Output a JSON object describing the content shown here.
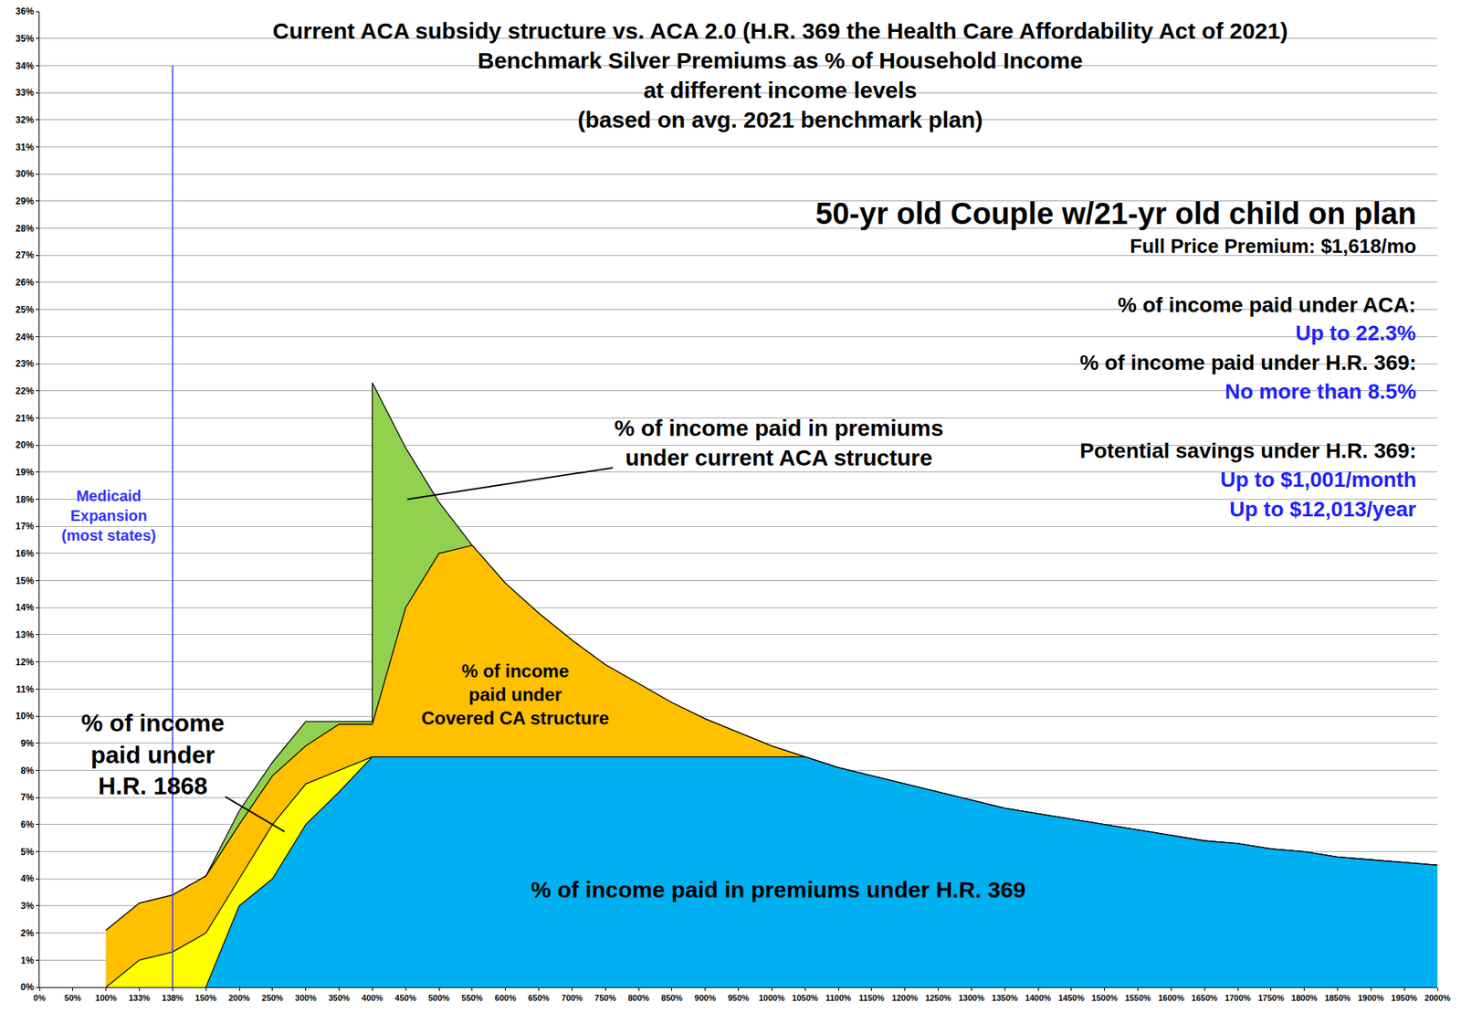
{
  "chart_data": {
    "type": "area",
    "title": "Current ACA subsidy structure vs. ACA 2.0 (H.R. 369 the Health Care Affordability Act of 2021)\nBenchmark Silver Premiums as % of Household Income\nat different income levels\n(based on avg. 2021 benchmark plan)",
    "categories": [
      "0%",
      "50%",
      "100%",
      "133%",
      "138%",
      "150%",
      "200%",
      "250%",
      "300%",
      "350%",
      "400%",
      "450%",
      "500%",
      "550%",
      "600%",
      "650%",
      "700%",
      "750%",
      "800%",
      "850%",
      "900%",
      "950%",
      "1000%",
      "1050%",
      "1100%",
      "1150%",
      "1200%",
      "1250%",
      "1300%",
      "1350%",
      "1400%",
      "1450%",
      "1500%",
      "1550%",
      "1600%",
      "1650%",
      "1700%",
      "1750%",
      "1800%",
      "1850%",
      "1900%",
      "1950%",
      "2000%"
    ],
    "series": [
      {
        "name": "% of income paid in premiums\nunder current ACA structure",
        "color": "#92d050",
        "values": [
          null,
          null,
          2.1,
          3.1,
          3.4,
          4.1,
          6.5,
          8.3,
          9.8,
          9.8,
          [
            9.8,
            22.3
          ],
          19.9,
          17.9,
          16.3,
          14.9,
          13.8,
          12.8,
          11.9,
          11.2,
          10.5,
          9.9,
          9.4,
          8.9,
          8.5,
          8.1,
          7.8,
          7.5,
          7.2,
          6.9,
          6.6,
          6.4,
          6.2,
          6.0,
          5.8,
          5.6,
          5.4,
          5.3,
          5.1,
          5.0,
          4.8,
          4.7,
          4.6,
          4.5
        ]
      },
      {
        "name": "% of income\npaid under\nCovered CA structure",
        "color": "#ffc000",
        "values": [
          null,
          null,
          2.1,
          3.1,
          3.4,
          4.1,
          6.0,
          7.8,
          8.9,
          9.7,
          9.7,
          14.0,
          16.0,
          16.3,
          14.9,
          13.8,
          12.8,
          11.9,
          11.2,
          10.5,
          9.9,
          9.4,
          8.9,
          8.5,
          8.1,
          7.8,
          7.5,
          7.2,
          6.9,
          6.6,
          6.4,
          6.2,
          6.0,
          5.8,
          5.6,
          5.4,
          5.3,
          5.1,
          5.0,
          4.8,
          4.7,
          4.6,
          4.5
        ]
      },
      {
        "name": "% of income\npaid under\nH.R. 1868",
        "color": "#ffff00",
        "values": [
          null,
          null,
          0,
          1.0,
          1.3,
          2.0,
          4.0,
          6.0,
          7.5,
          8.0,
          8.5,
          null,
          null,
          null,
          null,
          null,
          null,
          null,
          null,
          null,
          null,
          null,
          null,
          null,
          null,
          null,
          null,
          null,
          null,
          null,
          null,
          null,
          null,
          null,
          null,
          null,
          null,
          null,
          null,
          null,
          null,
          null,
          null
        ]
      },
      {
        "name": "% of income paid in premiums under H.R. 369",
        "color": "#00b0f0",
        "values": [
          null,
          null,
          null,
          null,
          null,
          0,
          3.0,
          4.0,
          6.0,
          7.2,
          8.5,
          8.5,
          8.5,
          8.5,
          8.5,
          8.5,
          8.5,
          8.5,
          8.5,
          8.5,
          8.5,
          8.5,
          8.5,
          8.5,
          8.1,
          7.8,
          7.5,
          7.2,
          6.9,
          6.6,
          6.4,
          6.2,
          6.0,
          5.8,
          5.6,
          5.4,
          5.3,
          5.1,
          5.0,
          4.8,
          4.7,
          4.6,
          4.5
        ]
      }
    ],
    "ylim": [
      0,
      36
    ],
    "yticks": [
      {
        "value": 0,
        "label": "0%"
      },
      {
        "value": 1,
        "label": "1%"
      },
      {
        "value": 2,
        "label": "2%"
      },
      {
        "value": 3,
        "label": "3%"
      },
      {
        "value": 4,
        "label": "4%"
      },
      {
        "value": 5,
        "label": "5%"
      },
      {
        "value": 6,
        "label": "6%"
      },
      {
        "value": 7,
        "label": "7%"
      },
      {
        "value": 8,
        "label": "8%"
      },
      {
        "value": 9,
        "label": "9%"
      },
      {
        "value": 10,
        "label": "10%"
      },
      {
        "value": 11,
        "label": "11%"
      },
      {
        "value": 12,
        "label": "12%"
      },
      {
        "value": 13,
        "label": "13%"
      },
      {
        "value": 14,
        "label": "14%"
      },
      {
        "value": 15,
        "label": "15%"
      },
      {
        "value": 16,
        "label": "16%"
      },
      {
        "value": 17,
        "label": "17%"
      },
      {
        "value": 18,
        "label": "18%"
      },
      {
        "value": 19,
        "label": "19%"
      },
      {
        "value": 20,
        "label": "20%"
      },
      {
        "value": 21,
        "label": "21%"
      },
      {
        "value": 22,
        "label": "22%"
      },
      {
        "value": 23,
        "label": "23%"
      },
      {
        "value": 24,
        "label": "24%"
      },
      {
        "value": 25,
        "label": "25%"
      },
      {
        "value": 26,
        "label": "26%"
      },
      {
        "value": 27,
        "label": "27%"
      },
      {
        "value": 28,
        "label": "28%"
      },
      {
        "value": 29,
        "label": "29%"
      },
      {
        "value": 30,
        "label": "30%"
      },
      {
        "value": 31,
        "label": "31%"
      },
      {
        "value": 32,
        "label": "32%"
      },
      {
        "value": 33,
        "label": "33%"
      },
      {
        "value": 34,
        "label": "34%"
      },
      {
        "value": 35,
        "label": "35%"
      },
      {
        "value": 36,
        "label": "36%"
      }
    ],
    "grid": true,
    "reference_lines": [
      {
        "category": "138%",
        "ymax": 34,
        "label": "Medicaid\nExpansion\n(most states)",
        "color": "#3333ff"
      }
    ],
    "annotations": [
      {
        "text": "50-yr old Couple w/21-yr old child on plan",
        "color": "#000000"
      },
      {
        "text": "Full Price Premium: $1,618/mo",
        "color": "#000000"
      },
      {
        "text": "% of income paid under ACA:",
        "color": "#000000"
      },
      {
        "text": "Up to 22.3%",
        "color": "#1f1fff"
      },
      {
        "text": "% of income paid under H.R. 369:",
        "color": "#000000"
      },
      {
        "text": "No more than 8.5%",
        "color": "#1f1fff"
      },
      {
        "text": "Potential savings under H.R. 369:",
        "color": "#000000"
      },
      {
        "text": "Up to $1,001/month",
        "color": "#1f1fff"
      },
      {
        "text": "Up to $12,013/year",
        "color": "#1f1fff"
      }
    ]
  }
}
